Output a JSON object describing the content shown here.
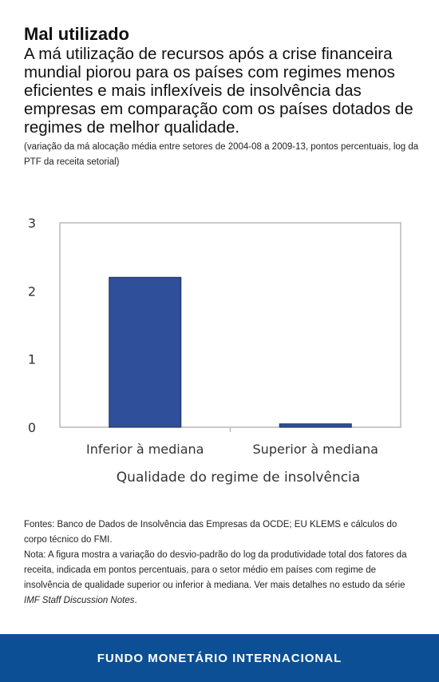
{
  "header": {
    "title": "Mal utilizado",
    "subtitle": "A má utilização de recursos após a crise financeira mundial piorou para os países com regimes menos eficientes e mais inflexíveis de insolvência das empresas em comparação com os países dotados de regimes de melhor qualidade.",
    "note": "(variação da má alocação média entre setores de 2004-08 a 2009-13, pontos percentuais, log da PTF da receita setorial)"
  },
  "chart_data": {
    "type": "bar",
    "categories": [
      "Inferior à mediana",
      "Superior à mediana"
    ],
    "values": [
      2.2,
      0.05
    ],
    "xlabel": "Qualidade do regime de insolvência",
    "ylabel": "",
    "ylim": [
      0,
      3
    ],
    "yticks": [
      0,
      1,
      2,
      3
    ],
    "grid": false,
    "bar_color": "#2f4f9a"
  },
  "footer": {
    "sources": "Fontes: Banco de Dados de Insolvência das Empresas da OCDE; EU KLEMS e cálculos do corpo técnico do FMI.",
    "note_prefix": "Nota: A figura mostra a variação do desvio-padrão do log da produtividade total dos fatores da receita, indicada em pontos percentuais, para o setor médio em países com regime de insolvência de qualidade superior ou inferior à mediana. Ver mais detalhes no estudo da série ",
    "note_italic": "IMF Staff Discussion Notes",
    "note_suffix": "."
  },
  "brand": {
    "name": "FUNDO MONETÁRIO INTERNACIONAL",
    "color": "#0d4f94"
  }
}
